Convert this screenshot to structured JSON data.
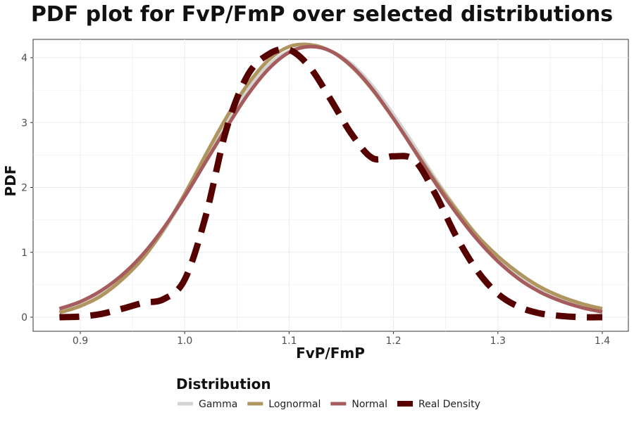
{
  "chart_data": {
    "type": "line",
    "title": "PDF plot for FvP/FmP over selected distributions",
    "xlabel": "FvP/FmP",
    "ylabel": "PDF",
    "xlim": [
      0.88,
      1.4
    ],
    "ylim": [
      0,
      4.2
    ],
    "x_ticks": [
      "0.9",
      "1.0",
      "1.1",
      "1.2",
      "1.3",
      "1.4"
    ],
    "y_ticks": [
      "0",
      "1",
      "2",
      "3",
      "4"
    ],
    "grid": true,
    "legend_title": "Distribution",
    "legend_position": "bottom",
    "series": [
      {
        "name": "Gamma",
        "color": "#d3d3d3",
        "dashed": false,
        "points": [
          [
            0.88,
            0.09
          ],
          [
            0.9,
            0.2
          ],
          [
            0.92,
            0.36
          ],
          [
            0.94,
            0.6
          ],
          [
            0.96,
            0.92
          ],
          [
            0.98,
            1.34
          ],
          [
            1.0,
            1.86
          ],
          [
            1.02,
            2.44
          ],
          [
            1.04,
            3.0
          ],
          [
            1.06,
            3.5
          ],
          [
            1.08,
            3.88
          ],
          [
            1.1,
            4.1
          ],
          [
            1.12,
            4.18
          ],
          [
            1.14,
            4.1
          ],
          [
            1.16,
            3.9
          ],
          [
            1.18,
            3.56
          ],
          [
            1.2,
            3.12
          ],
          [
            1.22,
            2.64
          ],
          [
            1.24,
            2.14
          ],
          [
            1.26,
            1.68
          ],
          [
            1.28,
            1.26
          ],
          [
            1.3,
            0.92
          ],
          [
            1.32,
            0.64
          ],
          [
            1.34,
            0.42
          ],
          [
            1.36,
            0.27
          ],
          [
            1.38,
            0.17
          ],
          [
            1.4,
            0.1
          ]
        ]
      },
      {
        "name": "Lognormal",
        "color": "#b0955f",
        "dashed": false,
        "points": [
          [
            0.88,
            0.07
          ],
          [
            0.9,
            0.17
          ],
          [
            0.92,
            0.33
          ],
          [
            0.94,
            0.58
          ],
          [
            0.96,
            0.91
          ],
          [
            0.98,
            1.36
          ],
          [
            1.0,
            1.9
          ],
          [
            1.02,
            2.5
          ],
          [
            1.04,
            3.08
          ],
          [
            1.06,
            3.58
          ],
          [
            1.08,
            3.96
          ],
          [
            1.1,
            4.17
          ],
          [
            1.12,
            4.2
          ],
          [
            1.14,
            4.1
          ],
          [
            1.16,
            3.86
          ],
          [
            1.18,
            3.5
          ],
          [
            1.2,
            3.06
          ],
          [
            1.22,
            2.58
          ],
          [
            1.24,
            2.1
          ],
          [
            1.26,
            1.66
          ],
          [
            1.28,
            1.26
          ],
          [
            1.3,
            0.94
          ],
          [
            1.32,
            0.68
          ],
          [
            1.34,
            0.47
          ],
          [
            1.36,
            0.32
          ],
          [
            1.38,
            0.21
          ],
          [
            1.4,
            0.13
          ]
        ]
      },
      {
        "name": "Normal",
        "color": "#a65c5c",
        "dashed": false,
        "points": [
          [
            0.88,
            0.13
          ],
          [
            0.9,
            0.24
          ],
          [
            0.92,
            0.41
          ],
          [
            0.94,
            0.65
          ],
          [
            0.96,
            0.97
          ],
          [
            0.98,
            1.38
          ],
          [
            1.0,
            1.86
          ],
          [
            1.02,
            2.39
          ],
          [
            1.04,
            2.92
          ],
          [
            1.06,
            3.42
          ],
          [
            1.08,
            3.82
          ],
          [
            1.1,
            4.08
          ],
          [
            1.12,
            4.17
          ],
          [
            1.14,
            4.1
          ],
          [
            1.16,
            3.87
          ],
          [
            1.18,
            3.51
          ],
          [
            1.2,
            3.06
          ],
          [
            1.22,
            2.57
          ],
          [
            1.24,
            2.07
          ],
          [
            1.26,
            1.61
          ],
          [
            1.28,
            1.2
          ],
          [
            1.3,
            0.86
          ],
          [
            1.32,
            0.59
          ],
          [
            1.34,
            0.39
          ],
          [
            1.36,
            0.25
          ],
          [
            1.38,
            0.15
          ],
          [
            1.4,
            0.08
          ]
        ]
      },
      {
        "name": "Real Density",
        "color": "#560000",
        "dashed": true,
        "points": [
          [
            0.88,
            0.0
          ],
          [
            0.9,
            0.01
          ],
          [
            0.92,
            0.05
          ],
          [
            0.94,
            0.13
          ],
          [
            0.96,
            0.22
          ],
          [
            0.98,
            0.28
          ],
          [
            1.0,
            0.58
          ],
          [
            1.02,
            1.55
          ],
          [
            1.04,
            2.9
          ],
          [
            1.06,
            3.72
          ],
          [
            1.08,
            4.05
          ],
          [
            1.1,
            4.12
          ],
          [
            1.12,
            3.85
          ],
          [
            1.14,
            3.35
          ],
          [
            1.16,
            2.82
          ],
          [
            1.18,
            2.45
          ],
          [
            1.2,
            2.48
          ],
          [
            1.22,
            2.42
          ],
          [
            1.24,
            1.9
          ],
          [
            1.26,
            1.25
          ],
          [
            1.28,
            0.72
          ],
          [
            1.3,
            0.36
          ],
          [
            1.32,
            0.16
          ],
          [
            1.34,
            0.06
          ],
          [
            1.36,
            0.02
          ],
          [
            1.38,
            0.0
          ],
          [
            1.4,
            0.0
          ]
        ]
      }
    ]
  }
}
